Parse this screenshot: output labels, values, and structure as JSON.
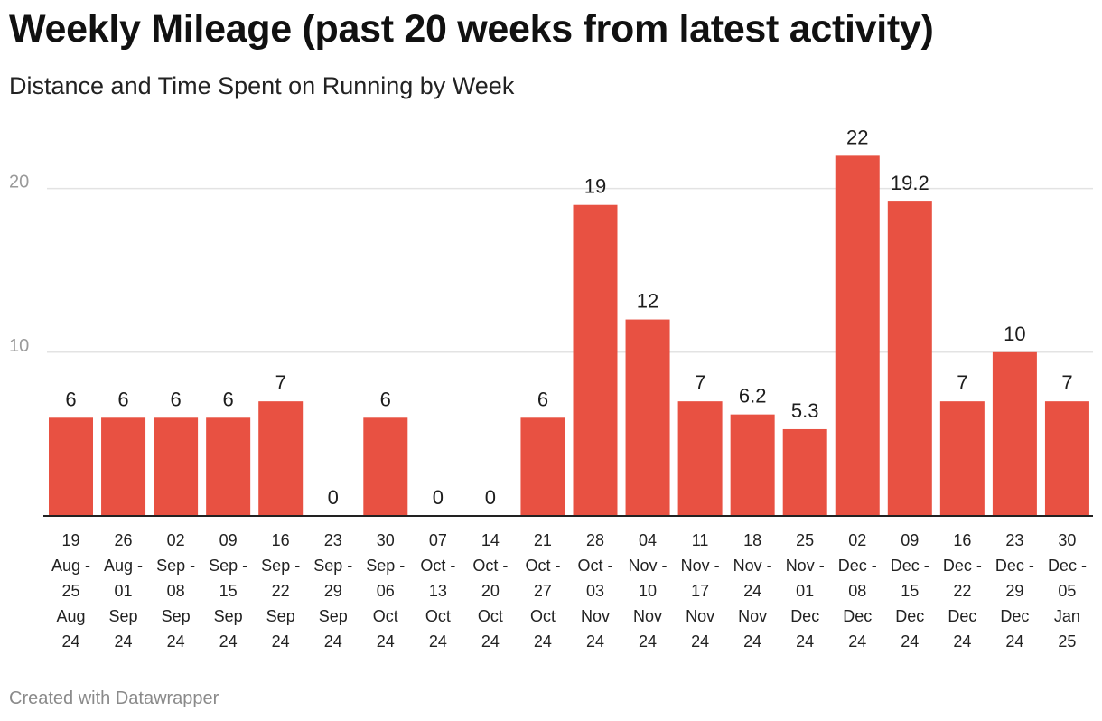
{
  "header": {
    "title": "Weekly Mileage (past 20 weeks from latest activity)",
    "subtitle": "Distance and Time Spent on Running by Week"
  },
  "footer": {
    "credit": "Created with Datawrapper"
  },
  "colors": {
    "bar": "#e85142",
    "grid": "#e3e3e3",
    "axis": "#222222",
    "tick_label": "#9a9a9a"
  },
  "chart_data": {
    "type": "bar",
    "title": "Weekly Mileage (past 20 weeks from latest activity)",
    "subtitle": "Distance and Time Spent on Running by Week",
    "xlabel": "",
    "ylabel": "",
    "ylim": [
      0,
      22
    ],
    "yticks": [
      10,
      20
    ],
    "grid": true,
    "categories": [
      [
        "19",
        "Aug -",
        "25",
        "Aug",
        "24"
      ],
      [
        "26",
        "Aug -",
        "01",
        "Sep",
        "24"
      ],
      [
        "02",
        "Sep -",
        "08",
        "Sep",
        "24"
      ],
      [
        "09",
        "Sep -",
        "15",
        "Sep",
        "24"
      ],
      [
        "16",
        "Sep -",
        "22",
        "Sep",
        "24"
      ],
      [
        "23",
        "Sep -",
        "29",
        "Sep",
        "24"
      ],
      [
        "30",
        "Sep -",
        "06",
        "Oct",
        "24"
      ],
      [
        "07",
        "Oct -",
        "13",
        "Oct",
        "24"
      ],
      [
        "14",
        "Oct -",
        "20",
        "Oct",
        "24"
      ],
      [
        "21",
        "Oct -",
        "27",
        "Oct",
        "24"
      ],
      [
        "28",
        "Oct -",
        "03",
        "Nov",
        "24"
      ],
      [
        "04",
        "Nov -",
        "10",
        "Nov",
        "24"
      ],
      [
        "11",
        "Nov -",
        "17",
        "Nov",
        "24"
      ],
      [
        "18",
        "Nov -",
        "24",
        "Nov",
        "24"
      ],
      [
        "25",
        "Nov -",
        "01",
        "Dec",
        "24"
      ],
      [
        "02",
        "Dec -",
        "08",
        "Dec",
        "24"
      ],
      [
        "09",
        "Dec -",
        "15",
        "Dec",
        "24"
      ],
      [
        "16",
        "Dec -",
        "22",
        "Dec",
        "24"
      ],
      [
        "23",
        "Dec -",
        "29",
        "Dec",
        "24"
      ],
      [
        "30",
        "Dec -",
        "05",
        "Jan",
        "25"
      ]
    ],
    "values": [
      6,
      6,
      6,
      6,
      7,
      0,
      6,
      0,
      0,
      6,
      19,
      12,
      7,
      6.2,
      5.3,
      22,
      19.2,
      7,
      10,
      7
    ],
    "data_labels": [
      "6",
      "6",
      "6",
      "6",
      "7",
      "0",
      "6",
      "0",
      "0",
      "6",
      "19",
      "12",
      "7",
      "6.2",
      "5.3",
      "22",
      "19.2",
      "7",
      "10",
      "7"
    ]
  }
}
